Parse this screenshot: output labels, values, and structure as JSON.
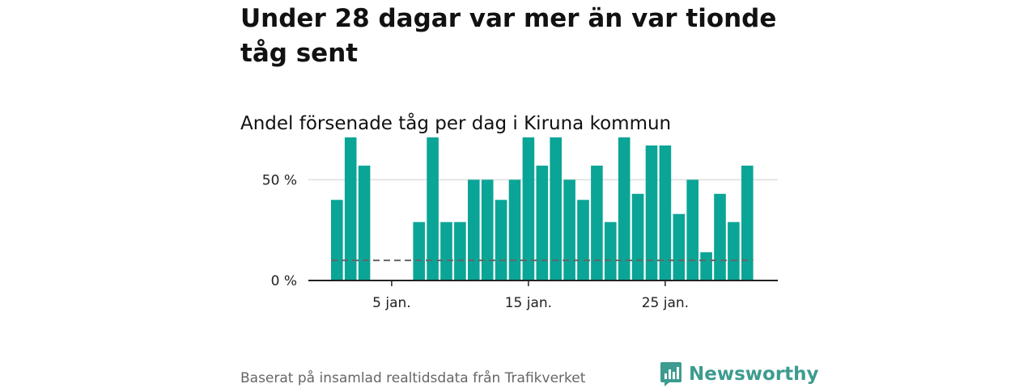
{
  "title": "Under 28 dagar var mer än var tionde tåg sent",
  "subtitle": "Andel försenade tåg per dag i Kiruna kommun",
  "source": "Baserat på insamlad realtidsdata från Trafikverket",
  "brand": {
    "name": "Newsworthy",
    "color": "#3d9b8f"
  },
  "colors": {
    "bar": "#0aa596",
    "reference_line": "#666666",
    "grid": "#dddddd",
    "axis": "#222222"
  },
  "chart_data": {
    "type": "bar",
    "title": "Andel försenade tåg per dag i Kiruna kommun",
    "xlabel": "",
    "ylabel": "",
    "x": [
      1,
      2,
      3,
      4,
      5,
      6,
      7,
      8,
      9,
      10,
      11,
      12,
      13,
      14,
      15,
      16,
      17,
      18,
      19,
      20,
      21,
      22,
      23,
      24,
      25,
      26,
      27,
      28,
      29,
      30,
      31
    ],
    "values": [
      40,
      71,
      57,
      0,
      0,
      0,
      29,
      71,
      29,
      29,
      50,
      50,
      40,
      50,
      71,
      57,
      71,
      50,
      40,
      57,
      29,
      71,
      43,
      67,
      67,
      33,
      50,
      14,
      43,
      29,
      57
    ],
    "unit": "%",
    "ylim": [
      0,
      75
    ],
    "yticks": [
      0,
      50
    ],
    "ytick_labels": [
      "0 %",
      "50 %"
    ],
    "xticks": [
      5,
      15,
      25
    ],
    "xtick_labels": [
      "5 jan.",
      "15 jan.",
      "25 jan."
    ],
    "reference_line": 10,
    "grid": true
  }
}
